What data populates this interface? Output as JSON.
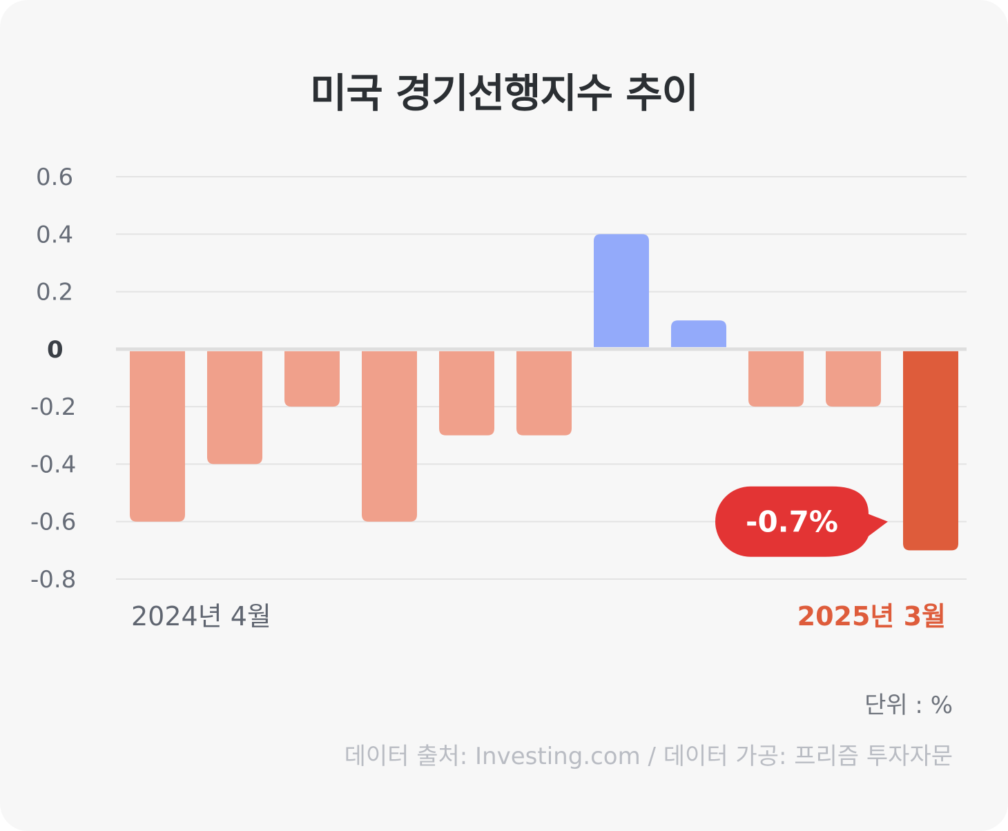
{
  "title": "미국 경기선행지수 추이",
  "chart_data": {
    "type": "bar",
    "categories": [
      "2024년 4월",
      "",
      "",
      "",
      "",
      "",
      "",
      "",
      "",
      "",
      "2025년 3월"
    ],
    "values": [
      -0.6,
      -0.4,
      -0.2,
      -0.6,
      -0.3,
      -0.3,
      0.4,
      0.1,
      -0.2,
      -0.2,
      -0.7
    ],
    "ylim": [
      -0.8,
      0.6
    ],
    "yticks": [
      "0.6",
      "0.4",
      "0.2",
      "0",
      "-0.2",
      "-0.4",
      "-0.6",
      "-0.8"
    ],
    "ytick_values": [
      0.6,
      0.4,
      0.2,
      0,
      -0.2,
      -0.4,
      -0.6,
      -0.8
    ],
    "grid": true,
    "x_start_label": "2024년 4월",
    "x_end_label": "2025년 3월",
    "callout": "-0.7%",
    "colors": {
      "negative": "#f0a08b",
      "positive": "#93aafa",
      "highlight": "#de5c3b",
      "callout": "#e33434",
      "grid": "#e3e3e3",
      "zero_line": "#dedede"
    }
  },
  "unit": "단위 : %",
  "source": "데이터 출처: Investing.com / 데이터 가공: 프리즘 투자자문"
}
